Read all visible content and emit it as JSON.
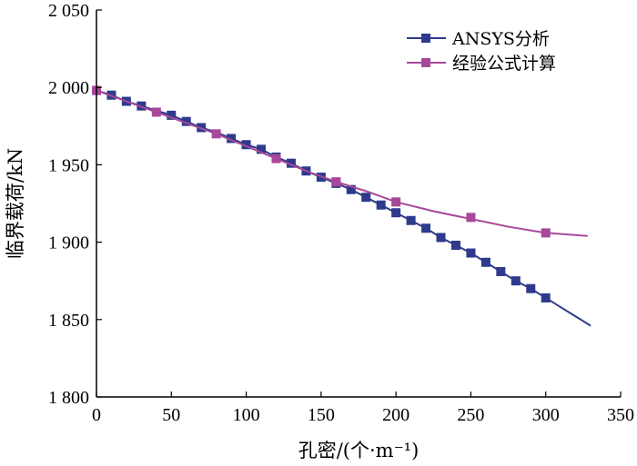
{
  "chart_data": {
    "type": "line",
    "xlabel": "孔密/(个·m⁻¹)",
    "ylabel": "临界载荷/kN",
    "xlim": [
      0,
      350
    ],
    "ylim": [
      1800,
      2050
    ],
    "x_ticks": [
      0,
      50,
      100,
      150,
      200,
      250,
      300,
      350
    ],
    "x_tick_labels": [
      "0",
      "50",
      "100",
      "150",
      "200",
      "250",
      "300",
      "350"
    ],
    "y_ticks": [
      1800,
      1850,
      1900,
      1950,
      2000,
      2050
    ],
    "y_tick_labels": [
      "1 800",
      "1 850",
      "1 900",
      "1 950",
      "2 000",
      "2 050"
    ],
    "grid": false,
    "legend_position": "top-right",
    "series": [
      {
        "name": "ANSYS分析",
        "color": "#2e3a8c",
        "marker": "square",
        "line_x": [
          0,
          10,
          20,
          30,
          40,
          50,
          60,
          70,
          80,
          90,
          100,
          110,
          120,
          130,
          140,
          150,
          160,
          170,
          180,
          190,
          200,
          210,
          220,
          230,
          240,
          250,
          260,
          270,
          280,
          290,
          300,
          310,
          320,
          330
        ],
        "line_y": [
          1998,
          1995,
          1991,
          1988,
          1985,
          1982,
          1978,
          1974,
          1971,
          1967,
          1963,
          1960,
          1955,
          1951,
          1946,
          1942,
          1938,
          1934,
          1929,
          1924,
          1919,
          1914,
          1909,
          1903,
          1898,
          1893,
          1887,
          1881,
          1875,
          1870,
          1864,
          1858,
          1852,
          1846
        ],
        "x": [
          0,
          10,
          20,
          30,
          50,
          60,
          70,
          90,
          100,
          110,
          120,
          130,
          140,
          150,
          160,
          170,
          180,
          190,
          200,
          210,
          220,
          230,
          240,
          250,
          260,
          270,
          280,
          290,
          300
        ],
        "y": [
          1998,
          1995,
          1991,
          1988,
          1982,
          1978,
          1974,
          1967,
          1963,
          1960,
          1955,
          1951,
          1946,
          1942,
          1938,
          1934,
          1929,
          1924,
          1919,
          1914,
          1909,
          1903,
          1898,
          1893,
          1887,
          1881,
          1875,
          1870,
          1864
        ]
      },
      {
        "name": "经验公式计算",
        "color": "#a8489a",
        "marker": "square",
        "line_x": [
          0,
          20,
          40,
          60,
          80,
          100,
          120,
          140,
          160,
          180,
          200,
          225,
          250,
          275,
          300,
          328
        ],
        "line_y": [
          1998,
          1991,
          1984,
          1977,
          1970,
          1962,
          1954,
          1946,
          1939,
          1933,
          1926,
          1920,
          1915,
          1910,
          1906,
          1904
        ],
        "x": [
          0,
          40,
          80,
          120,
          160,
          200,
          250,
          300
        ],
        "y": [
          1998,
          1984,
          1970,
          1954,
          1939,
          1926,
          1916,
          1906
        ]
      }
    ]
  }
}
